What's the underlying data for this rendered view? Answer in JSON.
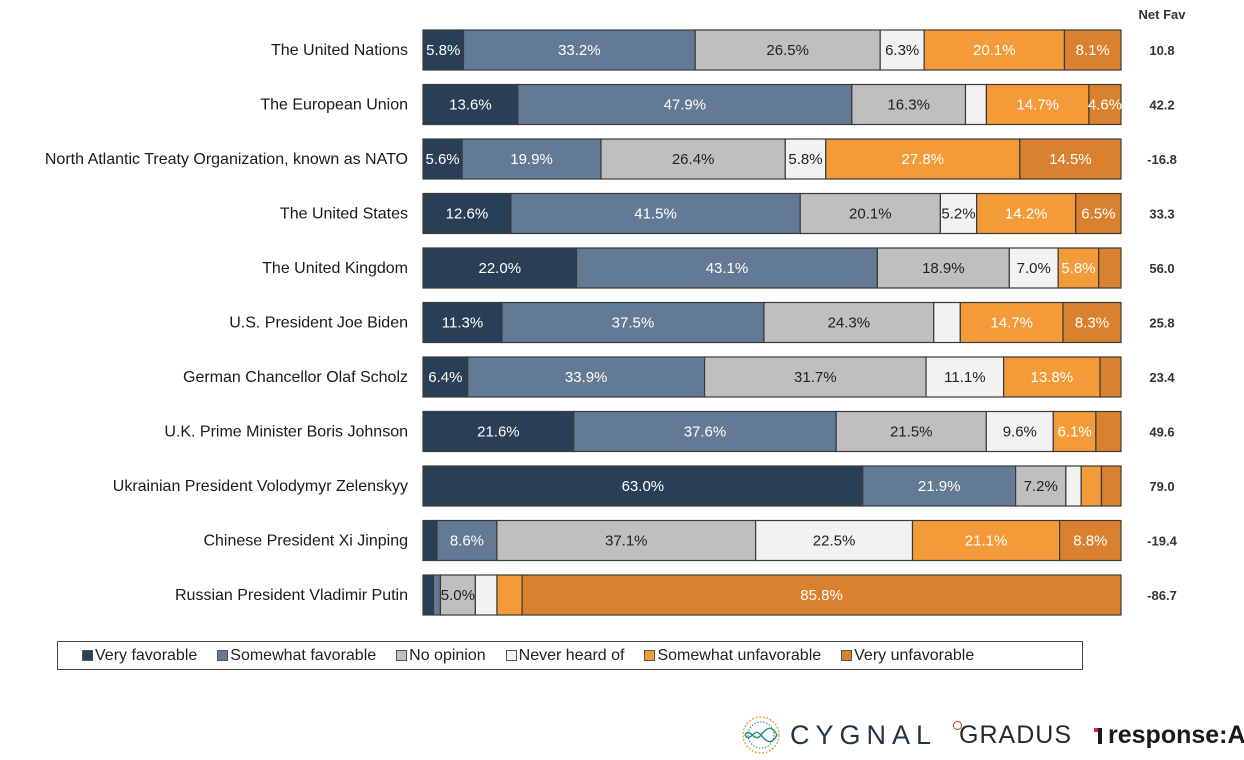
{
  "chart_data": {
    "type": "bar",
    "orientation": "horizontal",
    "stacked": true,
    "normalized_to_percent": true,
    "net_fav_header": "Net Fav",
    "categories": [
      "The United Nations",
      "The European Union",
      "North Atlantic Treaty Organization, known as NATO",
      "The United States",
      "The United Kingdom",
      "U.S. President Joe Biden",
      "German Chancellor Olaf Scholz",
      "U.K. Prime Minister Boris Johnson",
      "Ukrainian President Volodymyr Zelenskyy",
      "Chinese President Xi Jinping",
      "Russian President Vladimir Putin"
    ],
    "series": [
      {
        "name": "Very favorable",
        "color": "#293f57",
        "label_color": "#ffffff",
        "values": [
          5.8,
          13.6,
          5.6,
          12.6,
          22.0,
          11.3,
          6.4,
          21.6,
          63.0,
          2.0,
          1.5
        ]
      },
      {
        "name": "Somewhat favorable",
        "color": "#627a93",
        "label_color": "#ffffff",
        "values": [
          33.2,
          47.9,
          19.9,
          41.5,
          43.1,
          37.5,
          33.9,
          37.6,
          21.9,
          8.6,
          1.0
        ]
      },
      {
        "name": "No opinion",
        "color": "#bfbfbf",
        "label_color": "#222222",
        "values": [
          26.5,
          16.3,
          26.4,
          20.1,
          18.9,
          24.3,
          31.7,
          21.5,
          7.2,
          37.1,
          5.0
        ]
      },
      {
        "name": "Never heard of",
        "color": "#f2f2f2",
        "label_color": "#222222",
        "values": [
          6.3,
          3.0,
          5.8,
          5.2,
          7.0,
          3.8,
          11.1,
          9.6,
          2.2,
          22.5,
          3.1
        ]
      },
      {
        "name": "Somewhat unfavorable",
        "color": "#f29b38",
        "label_color": "#ffffff",
        "values": [
          20.1,
          14.7,
          27.8,
          14.2,
          5.8,
          14.7,
          13.8,
          6.1,
          2.9,
          21.1,
          3.6
        ]
      },
      {
        "name": "Very unfavorable",
        "color": "#d9812e",
        "label_color": "#ffffff",
        "values": [
          8.1,
          4.6,
          14.5,
          6.5,
          3.2,
          8.3,
          3.0,
          3.6,
          2.8,
          8.8,
          85.8
        ]
      }
    ],
    "segment_labels": [
      [
        "5.8%",
        "33.2%",
        "26.5%",
        "6.3%",
        "20.1%",
        "8.1%"
      ],
      [
        "13.6%",
        "47.9%",
        "16.3%",
        "",
        "14.7%",
        "4.6%"
      ],
      [
        "5.6%",
        "19.9%",
        "26.4%",
        "5.8%",
        "27.8%",
        "14.5%"
      ],
      [
        "12.6%",
        "41.5%",
        "20.1%",
        "5.2%",
        "14.2%",
        "6.5%"
      ],
      [
        "22.0%",
        "43.1%",
        "18.9%",
        "7.0%",
        "5.8%",
        ""
      ],
      [
        "11.3%",
        "37.5%",
        "24.3%",
        "",
        "14.7%",
        "8.3%"
      ],
      [
        "6.4%",
        "33.9%",
        "31.7%",
        "11.1%",
        "13.8%",
        ""
      ],
      [
        "21.6%",
        "37.6%",
        "21.5%",
        "9.6%",
        "6.1%",
        ""
      ],
      [
        "63.0%",
        "21.9%",
        "7.2%",
        "",
        "",
        ""
      ],
      [
        "",
        "8.6%",
        "37.1%",
        "22.5%",
        "21.1%",
        "8.8%"
      ],
      [
        "",
        "",
        "5.0%",
        "",
        "",
        "85.8%"
      ]
    ],
    "net_fav": [
      "10.8",
      "42.2",
      "-16.8",
      "33.3",
      "56.0",
      "25.8",
      "23.4",
      "49.6",
      "79.0",
      "-19.4",
      "-86.7"
    ],
    "legend_position": "bottom",
    "grid": false
  },
  "logos": {
    "cygnal": "CYGNAL",
    "gradus": "GRADUS",
    "response": "response:AI"
  }
}
